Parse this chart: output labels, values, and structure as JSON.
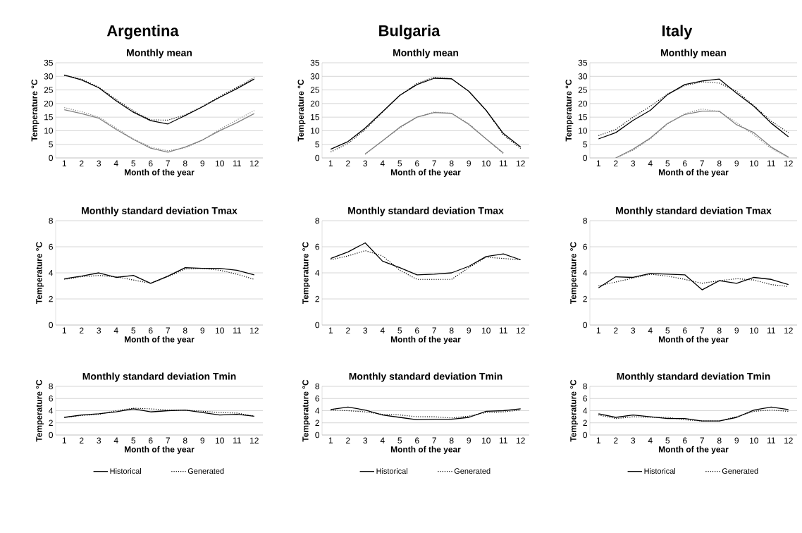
{
  "chart_data": [
    {
      "type": "line",
      "title": "Argentina",
      "subtitle": "Monthly mean",
      "xlabel": "Month of the year",
      "ylabel": "Temperature °C",
      "categories": [
        "1",
        "2",
        "3",
        "4",
        "5",
        "6",
        "7",
        "8",
        "9",
        "10",
        "11",
        "12"
      ],
      "ylim": [
        0,
        35
      ],
      "yticks": [
        0,
        5,
        10,
        15,
        20,
        25,
        30,
        35
      ],
      "grid": "y",
      "series": [
        {
          "color": "#000000",
          "line_style": "solid",
          "values": [
            30.5,
            28.7,
            25.8,
            21,
            16.8,
            13.7,
            12.5,
            15.6,
            18.8,
            22.3,
            25.5,
            29
          ]
        },
        {
          "color": "#000000",
          "line_style": "dotted",
          "values": [
            30.3,
            29,
            26,
            21.5,
            17.3,
            14,
            13.9,
            15.8,
            18.9,
            22.6,
            26,
            29.5
          ]
        },
        {
          "color": "#808080",
          "line_style": "solid",
          "values": [
            17.7,
            16.3,
            14.6,
            10.5,
            6.8,
            3.6,
            2.1,
            4,
            6.6,
            10,
            13,
            16.3
          ]
        },
        {
          "color": "#808080",
          "line_style": "dotted",
          "values": [
            18.5,
            17,
            15,
            11,
            7,
            4,
            2.6,
            3.7,
            6.5,
            10.5,
            14,
            17.4
          ]
        }
      ]
    },
    {
      "type": "line",
      "title": "Bulgaria",
      "subtitle": "Monthly mean",
      "xlabel": "Month of the year",
      "ylabel": "Temperature °C",
      "categories": [
        "1",
        "2",
        "3",
        "4",
        "5",
        "6",
        "7",
        "8",
        "9",
        "10",
        "11",
        "12"
      ],
      "ylim": [
        0,
        35
      ],
      "yticks": [
        0,
        5,
        10,
        15,
        20,
        25,
        30,
        35
      ],
      "grid": "y",
      "series": [
        {
          "color": "#000000",
          "line_style": "solid",
          "values": [
            3.2,
            6,
            11,
            17,
            23,
            27,
            29.3,
            29.1,
            24.5,
            17.5,
            9,
            4
          ]
        },
        {
          "color": "#000000",
          "line_style": "dotted",
          "values": [
            2.2,
            5.3,
            10.5,
            16.8,
            23,
            27.4,
            29.7,
            29.1,
            24.5,
            17.5,
            8.5,
            3.5
          ]
        },
        {
          "color": "#808080",
          "line_style": "solid",
          "values": [
            null,
            null,
            1.5,
            6.3,
            11.3,
            15,
            16.7,
            16.4,
            12.3,
            7,
            1.8,
            null
          ]
        },
        {
          "color": "#808080",
          "line_style": "dotted",
          "values": [
            null,
            null,
            1.3,
            6.3,
            11,
            15,
            16.9,
            16.4,
            12.6,
            7,
            1.5,
            null
          ]
        }
      ]
    },
    {
      "type": "line",
      "title": "Italy",
      "subtitle": "Monthly mean",
      "xlabel": "Month of the year",
      "ylabel": "Temperature °C",
      "categories": [
        "1",
        "2",
        "3",
        "4",
        "5",
        "6",
        "7",
        "8",
        "9",
        "10",
        "11",
        "12"
      ],
      "ylim": [
        0,
        35
      ],
      "yticks": [
        0,
        5,
        10,
        15,
        20,
        25,
        30,
        35
      ],
      "grid": "y",
      "series": [
        {
          "color": "#000000",
          "line_style": "solid",
          "values": [
            7,
            9.3,
            13.8,
            17.5,
            23.3,
            27,
            28.3,
            29,
            23.8,
            19,
            12.8,
            7.8
          ]
        },
        {
          "color": "#000000",
          "line_style": "dotted",
          "values": [
            8.2,
            10.5,
            15,
            19,
            23.5,
            26.6,
            28,
            27.5,
            24.5,
            19.2,
            13.5,
            9.3
          ]
        },
        {
          "color": "#808080",
          "line_style": "solid",
          "values": [
            null,
            0,
            3.2,
            7.3,
            12.7,
            16,
            17.2,
            17.2,
            12.2,
            9.3,
            4,
            0.3
          ]
        },
        {
          "color": "#808080",
          "line_style": "dotted",
          "values": [
            null,
            0,
            2.8,
            7,
            12.5,
            16.3,
            18,
            17,
            13,
            8.5,
            3.5,
            0.2
          ]
        }
      ]
    },
    {
      "type": "line",
      "title": "Monthly standard deviation Tmax",
      "xlabel": "Month of the year",
      "ylabel": "Temperature °C",
      "categories": [
        "1",
        "2",
        "3",
        "4",
        "5",
        "6",
        "7",
        "8",
        "9",
        "10",
        "11",
        "12"
      ],
      "ylim": [
        0,
        8
      ],
      "yticks": [
        0,
        2,
        4,
        6,
        8
      ],
      "grid": "y",
      "series": [
        {
          "color": "#000000",
          "line_style": "solid",
          "values": [
            3.55,
            3.75,
            4.0,
            3.65,
            3.8,
            3.2,
            3.75,
            4.4,
            4.35,
            4.35,
            4.2,
            3.85
          ]
        },
        {
          "color": "#000000",
          "line_style": "dotted",
          "values": [
            3.5,
            3.7,
            3.8,
            3.7,
            3.45,
            3.2,
            3.7,
            4.3,
            4.35,
            4.2,
            3.9,
            3.5
          ]
        }
      ]
    },
    {
      "type": "line",
      "title": "Monthly standard deviation Tmax",
      "xlabel": "Month of the year",
      "ylabel": "Temperature °C",
      "categories": [
        "1",
        "2",
        "3",
        "4",
        "5",
        "6",
        "7",
        "8",
        "9",
        "10",
        "11",
        "12"
      ],
      "ylim": [
        0,
        8
      ],
      "yticks": [
        0,
        2,
        4,
        6,
        8
      ],
      "grid": "y",
      "series": [
        {
          "color": "#000000",
          "line_style": "solid",
          "values": [
            5.1,
            5.6,
            6.3,
            4.9,
            4.4,
            3.85,
            3.9,
            4.0,
            4.5,
            5.25,
            5.45,
            5.0
          ]
        },
        {
          "color": "#000000",
          "line_style": "dotted",
          "values": [
            5.0,
            5.3,
            5.7,
            5.3,
            4.2,
            3.5,
            3.5,
            3.5,
            4.4,
            5.2,
            5.1,
            5.0
          ]
        }
      ]
    },
    {
      "type": "line",
      "title": "Monthly standard deviation Tmax",
      "xlabel": "Month of the year",
      "ylabel": "Temperature °C",
      "categories": [
        "1",
        "2",
        "3",
        "4",
        "5",
        "6",
        "7",
        "8",
        "9",
        "10",
        "11",
        "12"
      ],
      "ylim": [
        0,
        8
      ],
      "yticks": [
        0,
        2,
        4,
        6,
        8
      ],
      "grid": "y",
      "series": [
        {
          "color": "#000000",
          "line_style": "solid",
          "values": [
            2.85,
            3.7,
            3.65,
            3.95,
            3.9,
            3.85,
            2.7,
            3.4,
            3.2,
            3.65,
            3.5,
            3.1
          ]
        },
        {
          "color": "#000000",
          "line_style": "dotted",
          "values": [
            3.0,
            3.3,
            3.6,
            3.9,
            3.75,
            3.5,
            3.2,
            3.4,
            3.55,
            3.45,
            3.1,
            2.95
          ]
        }
      ]
    },
    {
      "type": "line",
      "title": "Monthly standard deviation Tmin",
      "xlabel": "Month of the year",
      "ylabel": "Temperature °C",
      "categories": [
        "1",
        "2",
        "3",
        "4",
        "5",
        "6",
        "7",
        "8",
        "9",
        "10",
        "11",
        "12"
      ],
      "ylim": [
        0,
        8
      ],
      "yticks": [
        0,
        2,
        4,
        6,
        8
      ],
      "grid": "y",
      "legend": "bottom",
      "series": [
        {
          "name": "Historical",
          "color": "#000000",
          "line_style": "solid",
          "values": [
            2.9,
            3.3,
            3.5,
            3.8,
            4.3,
            3.8,
            4.0,
            4.1,
            3.7,
            3.3,
            3.4,
            3.1
          ]
        },
        {
          "name": "Generated",
          "color": "#000000",
          "line_style": "dotted",
          "values": [
            2.9,
            3.2,
            3.4,
            4.0,
            4.4,
            4.3,
            4.1,
            4.1,
            3.9,
            3.7,
            3.6,
            3.1
          ]
        }
      ]
    },
    {
      "type": "line",
      "title": "Monthly standard deviation Tmin",
      "xlabel": "Month of the year",
      "ylabel": "Temperature °C",
      "categories": [
        "1",
        "2",
        "3",
        "4",
        "5",
        "6",
        "7",
        "8",
        "9",
        "10",
        "11",
        "12"
      ],
      "ylim": [
        0,
        8
      ],
      "yticks": [
        0,
        2,
        4,
        6,
        8
      ],
      "grid": "y",
      "legend": "bottom",
      "series": [
        {
          "name": "Historical",
          "color": "#000000",
          "line_style": "solid",
          "values": [
            4.2,
            4.6,
            4.1,
            3.3,
            2.9,
            2.5,
            2.6,
            2.6,
            2.9,
            3.9,
            4.0,
            4.3
          ]
        },
        {
          "name": "Generated",
          "color": "#000000",
          "line_style": "dotted",
          "values": [
            4.1,
            4.0,
            3.8,
            3.4,
            3.3,
            3.0,
            3.0,
            2.8,
            3.1,
            3.7,
            3.8,
            4.1
          ]
        }
      ]
    },
    {
      "type": "line",
      "title": "Monthly standard deviation Tmin",
      "xlabel": "Month of the year",
      "ylabel": "Temperature °C",
      "categories": [
        "1",
        "2",
        "3",
        "4",
        "5",
        "6",
        "7",
        "8",
        "9",
        "10",
        "11",
        "12"
      ],
      "ylim": [
        0,
        8
      ],
      "yticks": [
        0,
        2,
        4,
        6,
        8
      ],
      "grid": "y",
      "legend": "bottom",
      "series": [
        {
          "name": "Historical",
          "color": "#000000",
          "line_style": "solid",
          "values": [
            3.5,
            2.9,
            3.3,
            3.0,
            2.7,
            2.7,
            2.3,
            2.3,
            2.9,
            4.1,
            4.6,
            4.2
          ]
        },
        {
          "name": "Generated",
          "color": "#000000",
          "line_style": "dotted",
          "values": [
            3.3,
            2.7,
            3.0,
            2.9,
            2.9,
            2.5,
            2.3,
            2.3,
            3.0,
            3.9,
            4.1,
            3.9
          ]
        }
      ]
    }
  ]
}
